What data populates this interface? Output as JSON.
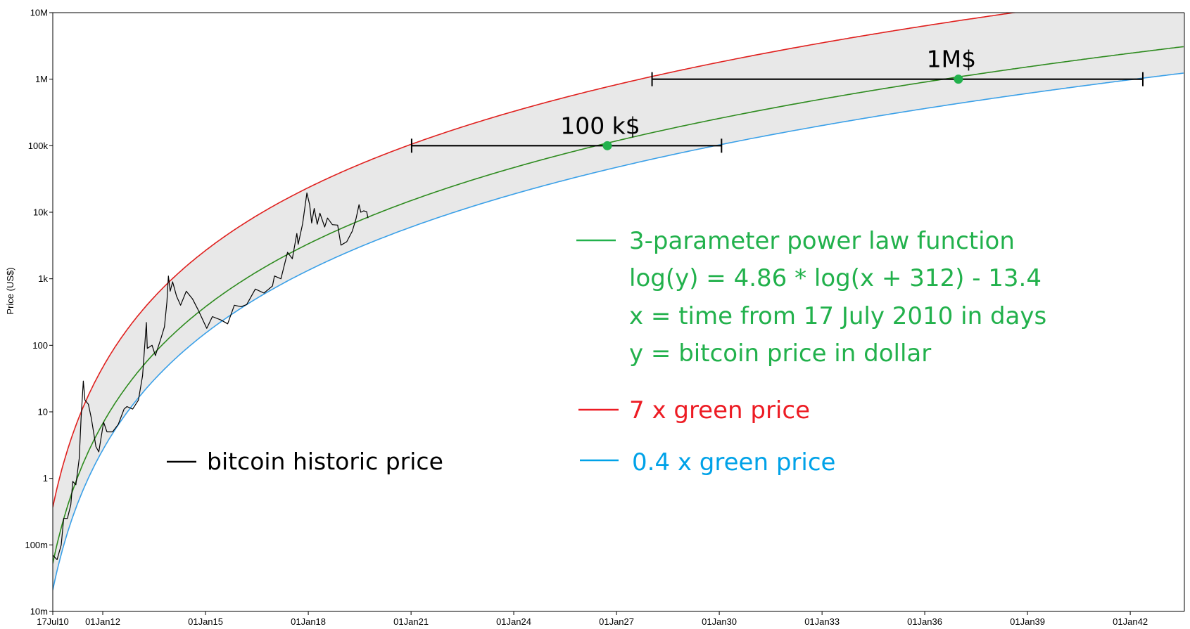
{
  "chart_data": {
    "type": "line",
    "yscale": "log",
    "ylabel": "Price (US$)",
    "xlabel": "",
    "xlim": [
      "2010-07-17",
      "2043-08-01"
    ],
    "ylim": [
      0.01,
      10000000
    ],
    "grid": false,
    "yticks": [
      {
        "value": 10000000,
        "label": "10M"
      },
      {
        "value": 1000000,
        "label": "1M"
      },
      {
        "value": 100000,
        "label": "100k"
      },
      {
        "value": 10000,
        "label": "10k"
      },
      {
        "value": 1000,
        "label": "1k"
      },
      {
        "value": 100,
        "label": "100"
      },
      {
        "value": 10,
        "label": "10"
      },
      {
        "value": 1,
        "label": "1"
      },
      {
        "value": 0.1,
        "label": "100m"
      },
      {
        "value": 0.01,
        "label": "10m"
      }
    ],
    "xticks": [
      {
        "date": "2010-07-17",
        "label": "17Jul10"
      },
      {
        "date": "2012-01-01",
        "label": "01Jan12"
      },
      {
        "date": "2015-01-01",
        "label": "01Jan15"
      },
      {
        "date": "2018-01-01",
        "label": "01Jan18"
      },
      {
        "date": "2021-01-01",
        "label": "01Jan21"
      },
      {
        "date": "2024-01-01",
        "label": "01Jan24"
      },
      {
        "date": "2027-01-01",
        "label": "01Jan27"
      },
      {
        "date": "2030-01-01",
        "label": "01Jan30"
      },
      {
        "date": "2033-01-01",
        "label": "01Jan33"
      },
      {
        "date": "2036-01-01",
        "label": "01Jan36"
      },
      {
        "date": "2039-01-01",
        "label": "01Jan39"
      },
      {
        "date": "2042-01-01",
        "label": "01Jan42"
      }
    ],
    "model": {
      "a": 4.86,
      "offset_days": 312,
      "b": -13.4,
      "origin": "2010-07-17"
    },
    "series": [
      {
        "name": "bitcoin historic price",
        "color": "#000000",
        "points": [
          [
            "2010-07-17",
            0.07
          ],
          [
            "2010-09-01",
            0.06
          ],
          [
            "2010-10-15",
            0.1
          ],
          [
            "2010-11-10",
            0.25
          ],
          [
            "2010-12-20",
            0.25
          ],
          [
            "2011-01-25",
            0.4
          ],
          [
            "2011-02-15",
            0.9
          ],
          [
            "2011-03-20",
            0.8
          ],
          [
            "2011-04-25",
            2.0
          ],
          [
            "2011-05-15",
            8.0
          ],
          [
            "2011-06-08",
            29
          ],
          [
            "2011-06-25",
            15
          ],
          [
            "2011-08-01",
            13
          ],
          [
            "2011-09-01",
            8
          ],
          [
            "2011-10-20",
            3
          ],
          [
            "2011-11-20",
            2.5
          ],
          [
            "2012-01-10",
            7
          ],
          [
            "2012-02-15",
            5
          ],
          [
            "2012-04-15",
            5
          ],
          [
            "2012-06-15",
            6.5
          ],
          [
            "2012-08-15",
            11
          ],
          [
            "2012-09-15",
            12
          ],
          [
            "2012-11-15",
            11
          ],
          [
            "2013-01-15",
            15
          ],
          [
            "2013-03-01",
            35
          ],
          [
            "2013-04-10",
            220
          ],
          [
            "2013-04-20",
            90
          ],
          [
            "2013-06-10",
            100
          ],
          [
            "2013-07-15",
            70
          ],
          [
            "2013-09-15",
            130
          ],
          [
            "2013-10-20",
            190
          ],
          [
            "2013-11-15",
            450
          ],
          [
            "2013-12-01",
            1100
          ],
          [
            "2013-12-20",
            650
          ],
          [
            "2014-01-15",
            900
          ],
          [
            "2014-02-25",
            550
          ],
          [
            "2014-04-10",
            400
          ],
          [
            "2014-06-10",
            650
          ],
          [
            "2014-08-15",
            500
          ],
          [
            "2014-10-10",
            350
          ],
          [
            "2015-01-14",
            180
          ],
          [
            "2015-03-15",
            270
          ],
          [
            "2015-06-15",
            240
          ],
          [
            "2015-08-25",
            210
          ],
          [
            "2015-11-04",
            400
          ],
          [
            "2016-01-15",
            380
          ],
          [
            "2016-03-15",
            410
          ],
          [
            "2016-06-15",
            700
          ],
          [
            "2016-09-15",
            610
          ],
          [
            "2016-12-15",
            780
          ],
          [
            "2017-01-05",
            1100
          ],
          [
            "2017-03-15",
            1000
          ],
          [
            "2017-05-25",
            2500
          ],
          [
            "2017-07-15",
            2000
          ],
          [
            "2017-09-01",
            4800
          ],
          [
            "2017-09-15",
            3300
          ],
          [
            "2017-11-01",
            6700
          ],
          [
            "2017-12-17",
            19500
          ],
          [
            "2018-01-15",
            13000
          ],
          [
            "2018-02-06",
            6900
          ],
          [
            "2018-03-05",
            11400
          ],
          [
            "2018-04-06",
            6600
          ],
          [
            "2018-05-05",
            9700
          ],
          [
            "2018-06-25",
            6000
          ],
          [
            "2018-07-25",
            8200
          ],
          [
            "2018-09-15",
            6500
          ],
          [
            "2018-11-10",
            6400
          ],
          [
            "2018-12-15",
            3200
          ],
          [
            "2019-02-15",
            3600
          ],
          [
            "2019-04-15",
            5200
          ],
          [
            "2019-05-25",
            8000
          ],
          [
            "2019-06-26",
            13000
          ],
          [
            "2019-07-15",
            10000
          ],
          [
            "2019-08-15",
            10500
          ],
          [
            "2019-09-15",
            10200
          ],
          [
            "2019-09-30",
            8200
          ]
        ]
      },
      {
        "name": "3-parameter power law function",
        "color": "#2e8b1f",
        "factor": 1
      },
      {
        "name": "7 x green price",
        "color": "#e0201e",
        "factor": 7
      },
      {
        "name": "0.4 x green price",
        "color": "#3aa0e8",
        "factor": 0.4
      }
    ],
    "band": {
      "from_factor": 0.4,
      "to_factor": 7,
      "color": "#e8e8e8"
    },
    "markers": [
      {
        "label": "100 k$",
        "value": 100000,
        "red_date": "2021-01-07",
        "green_date": "2026-09-25",
        "blue_date": "2030-01-25"
      },
      {
        "label": "1M$",
        "value": 1000000,
        "red_date": "2028-01-15",
        "green_date": "2036-12-25",
        "blue_date": "2042-05-15"
      }
    ],
    "annotations": {
      "legend_black": "bitcoin historic price",
      "green_lines": [
        "3-parameter power law function",
        "log(y) = 4.86 * log(x + 312) - 13.4",
        "x = time from 17 July 2010  in days",
        "y = bitcoin price in dollar"
      ],
      "legend_red": "7 x green price",
      "legend_blue": "0.4 x green price"
    },
    "colors": {
      "black": "#000000",
      "green_text": "#22b14c",
      "red_text": "#ed1c24",
      "blue_text": "#00a2e8",
      "marker_dot": "#22b14c",
      "band": "#e8e8e8"
    }
  }
}
